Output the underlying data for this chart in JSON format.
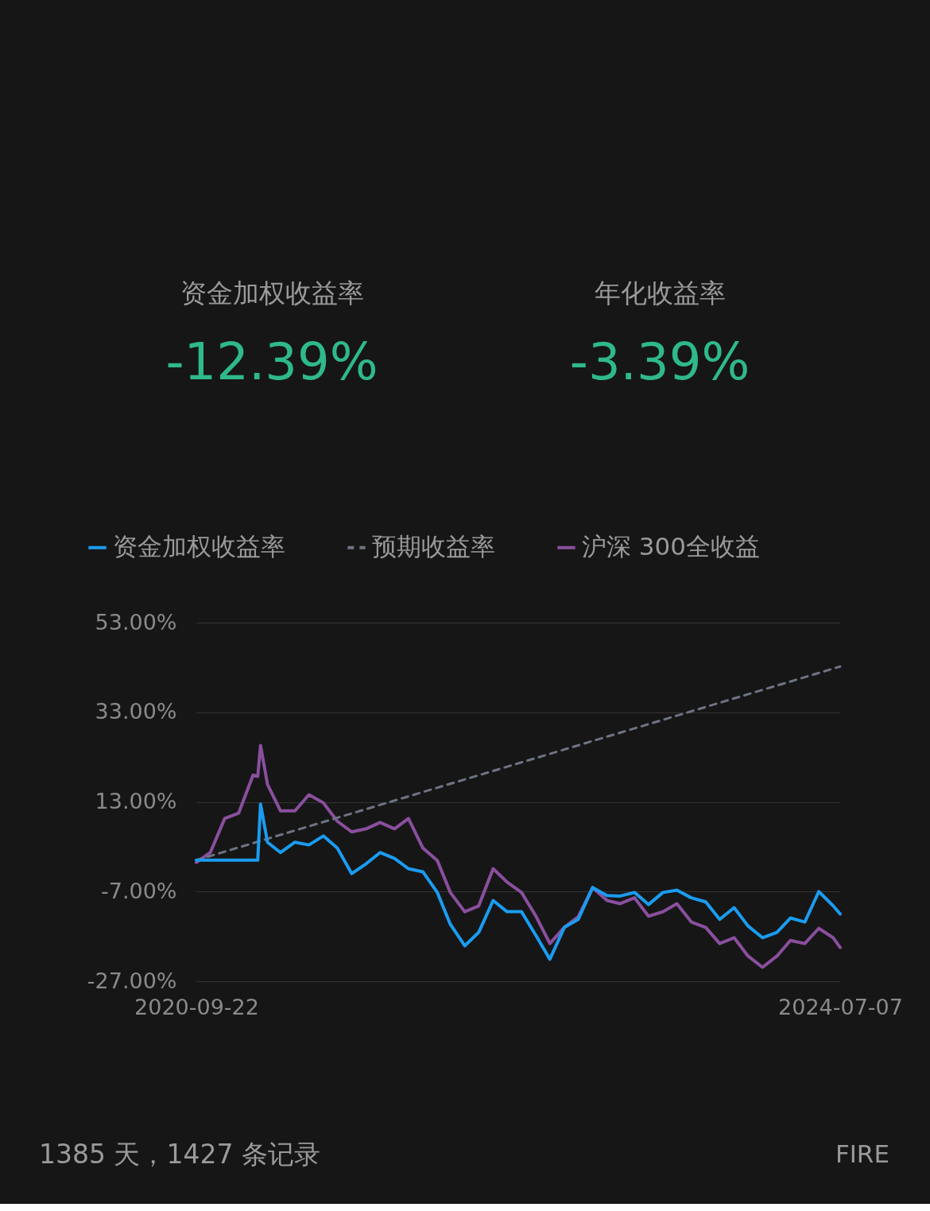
{
  "chart_data": {
    "type": "line",
    "x": [
      "2020-09-22",
      "2020-10-22",
      "2020-11-22",
      "2020-12-22",
      "2021-01-22",
      "2021-02-01",
      "2021-02-07",
      "2021-02-22",
      "2021-03-22",
      "2021-04-22",
      "2021-05-22",
      "2021-06-22",
      "2021-07-22",
      "2021-08-22",
      "2021-09-22",
      "2021-10-22",
      "2021-11-22",
      "2021-12-22",
      "2022-01-22",
      "2022-02-22",
      "2022-03-22",
      "2022-04-22",
      "2022-05-22",
      "2022-06-22",
      "2022-07-22",
      "2022-08-22",
      "2022-09-22",
      "2022-10-22",
      "2022-11-22",
      "2022-12-22",
      "2023-01-22",
      "2023-02-22",
      "2023-03-22",
      "2023-04-22",
      "2023-05-22",
      "2023-06-22",
      "2023-07-22",
      "2023-08-22",
      "2023-09-22",
      "2023-10-22",
      "2023-11-22",
      "2023-12-22",
      "2024-01-22",
      "2024-02-22",
      "2024-03-22",
      "2024-04-22",
      "2024-05-22",
      "2024-06-22",
      "2024-07-07"
    ],
    "series": [
      {
        "name": "资金加权收益率",
        "color": "#1a9cf0",
        "line_style": "solid",
        "values": [
          0,
          0,
          0,
          0,
          0,
          0,
          12.5,
          4,
          1.7,
          4,
          3.4,
          5.4,
          2.7,
          -3,
          -0.8,
          1.7,
          0.4,
          -1.9,
          -2.6,
          -7.2,
          -14.3,
          -19.1,
          -16.1,
          -9,
          -11.5,
          -11.5,
          -16.8,
          -22.1,
          -15,
          -13.2,
          -6.1,
          -7.9,
          -8,
          -7.2,
          -9.9,
          -7.2,
          -6.7,
          -8.4,
          -9.3,
          -13.2,
          -10.6,
          -14.7,
          -17.3,
          -16.1,
          -12.9,
          -13.8,
          -7,
          -10.2,
          -12
        ]
      },
      {
        "name": "预期收益率",
        "color": "#6e7385",
        "line_style": "dashed",
        "x": [
          "2020-09-22",
          "2024-07-07"
        ],
        "values": [
          0,
          43.2
        ]
      },
      {
        "name": "沪深 300全收益",
        "color": "#8a4f9e",
        "line_style": "solid",
        "values": [
          -0.5,
          1.7,
          9.3,
          10.5,
          19,
          18.7,
          25.6,
          16.9,
          11,
          11,
          14.6,
          12.8,
          8.7,
          6.3,
          7,
          8.4,
          7,
          9.3,
          2.7,
          -0.1,
          -7.2,
          -11.5,
          -10.2,
          -1.9,
          -4.9,
          -7.2,
          -12.5,
          -18.6,
          -15,
          -12.6,
          -6.1,
          -9,
          -9.7,
          -8.4,
          -12.5,
          -11.5,
          -9.7,
          -13.8,
          -15,
          -18.6,
          -17.3,
          -21.4,
          -23.9,
          -21.4,
          -17.9,
          -18.6,
          -15.2,
          -17.3,
          -19.5
        ]
      }
    ],
    "ylim": [
      -27,
      53
    ],
    "yticks": [
      {
        "value": -27,
        "label": "-27.00%"
      },
      {
        "value": -7,
        "label": "-7.00%"
      },
      {
        "value": 13,
        "label": "13.00%"
      },
      {
        "value": 33,
        "label": "33.00%"
      },
      {
        "value": 53,
        "label": "53.00%"
      }
    ],
    "xlim": [
      "2020-09-22",
      "2024-07-07"
    ],
    "xticks": [
      "2020-09-22",
      "2024-07-07"
    ],
    "grid": "y",
    "legend": "top",
    "annotations": [
      "资金加权收益率",
      "-12.39%",
      "年化收益率",
      "-3.39%",
      "1385 天，1427 条记录",
      "FIRE"
    ]
  }
}
